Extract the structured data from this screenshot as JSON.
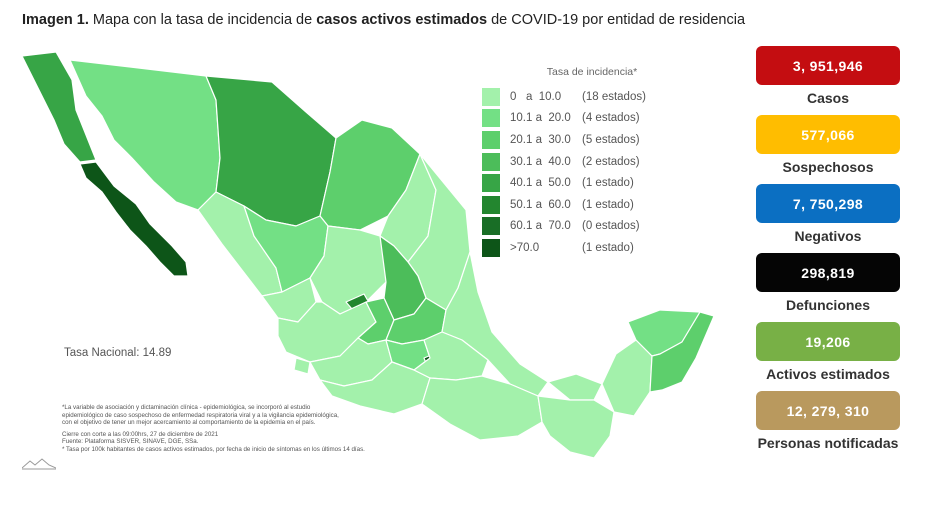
{
  "title": {
    "prefix": "Imagen 1.",
    "part1": " Mapa con la tasa de incidencia de ",
    "bold": "casos activos estimados",
    "part2": " de COVID-19 por entidad de residencia"
  },
  "legend": {
    "title": "Tasa de incidencia*",
    "items": [
      {
        "range": "0   a  10.0",
        "count": "(18 estados)",
        "color": "#a3f1ab"
      },
      {
        "range": "10.1 a  20.0",
        "count": "(4 estados)",
        "color": "#73e085"
      },
      {
        "range": "20.1 a  30.0",
        "count": "(5 estados)",
        "color": "#5dcf6c"
      },
      {
        "range": "30.1 a  40.0",
        "count": "(2 estados)",
        "color": "#4cbd5a"
      },
      {
        "range": "40.1 a  50.0",
        "count": "(1 estado)",
        "color": "#37a546"
      },
      {
        "range": "50.1 a  60.0",
        "count": "(1 estado)",
        "color": "#23862f"
      },
      {
        "range": "60.1 a  70.0",
        "count": "(0 estados)",
        "color": "#196e26"
      },
      {
        "range": ">70.0",
        "count": "(1 estado)",
        "color": "#0d5518"
      }
    ]
  },
  "tasa_nacional": "Tasa Nacional: 14.89",
  "notes": {
    "lines1": [
      "*La variable de asociación y dictaminación clínica - epidemiológica, se incorporó al estudio",
      "epidemiológico de caso sospechoso de enfermedad respiratoria viral y a la vigilancia epidemiológica,",
      "con el objetivo de tener un mejor acercamiento al comportamiento de la epidemia en el país."
    ],
    "lines2": [
      "Cierre con corte a las 09:00hrs, 27 de diciembre de 2021",
      "Fuente: Plataforma SISVER, SINAVE, DGE, SSa.",
      "* Tasa por 100k habitantes de casos activos estimados, por fecha de inicio de síntomas en los últimos 14 días."
    ]
  },
  "stats": [
    {
      "value": "3, 951,946",
      "label": "Casos",
      "color": "#c40d11"
    },
    {
      "value": "577,066",
      "label": "Sospechosos",
      "color": "#ffbd00"
    },
    {
      "value": "7, 750,298",
      "label": "Negativos",
      "color": "#0b6fc2"
    },
    {
      "value": "298,819",
      "label": "Defunciones",
      "color": "#050505"
    },
    {
      "value": "19,206",
      "label": "Activos estimados",
      "color": "#78b046"
    },
    {
      "value": "12, 279, 310",
      "label": "Personas notificadas",
      "color": "#b9995e"
    }
  ]
}
